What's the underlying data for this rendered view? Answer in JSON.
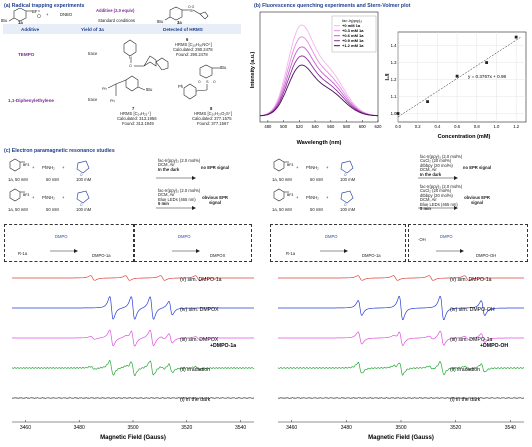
{
  "panel_a": {
    "title": "(a) Radical trapping experiments",
    "scheme_plus": "+",
    "scheme_reagent": "DNBO",
    "scheme_additive": "Additive (2.0 equiv)",
    "scheme_conditions": "Standard conditions",
    "label_1a": "1a",
    "label_3a": "3a",
    "table_headers": [
      "Additive",
      "Yield of 3a",
      "Detected of HRMS"
    ],
    "rows": [
      {
        "additive": "TEMPO",
        "yield": "trace",
        "compound_number": "6",
        "hrms": "HRMS [C₁₈H₃₀NO⁺]",
        "calc": "Calculated: 290.2478",
        "found": "Found: 290.2478"
      },
      {
        "additive": "1,1-Diphenylethylene",
        "yield": "trace",
        "compound_number": "7",
        "hrms": "HRMS [C₂₄H₂₅⁺]",
        "calc": "Calculated: 313.1956",
        "found": "Found: 313.1949",
        "compound_number_2": "8",
        "hrms_2": "HRMS [C₂₀H₂₇O₂S⁺]",
        "calc_2": "Calculated: 377.1575",
        "found_2": "Found: 377.1567"
      }
    ],
    "substituent_tbu": "tBu",
    "substituent_ph": "Ph"
  },
  "panel_b": {
    "title": "(b) Fluorescence quenching experiments and Stern-Volmer plot"
  },
  "panel_c": {
    "title": "(c) Electron paramagnetic resonance studies",
    "left_rows": [
      {
        "conditions": [
          "fac-Ir(ppy)₃ (2.0 mol%)",
          "DCM, Air",
          "In the dark"
        ],
        "result": "no EPR signal"
      },
      {
        "conditions": [
          "fac-Ir(ppy)₃ (2.0 mol%)",
          "DCM, Air",
          "Blue LEDs (465 nm)",
          "5 min"
        ],
        "result": "obvious EPR signal"
      }
    ],
    "right_rows": [
      {
        "conditions": [
          "fac-Ir(ppy)₃ (2.0 mol%)",
          "CuCl₂ (20 mol%)",
          "dtbbpy (20 mol%)",
          "DCM, Air",
          "In the dark"
        ],
        "result": "no EPR signal"
      },
      {
        "conditions": [
          "fac-Ir(ppy)₃ (2.0 mol%)",
          "CuCl₂ (20 mol%)",
          "dtbbpy (20 mol%)",
          "DCM, Air",
          "Blue LEDs (465 nm)",
          "5 min"
        ],
        "result": "obvious EPR signal"
      }
    ],
    "reagent_amounts": [
      "1a, 50 mM",
      "50 mM",
      "100 mM"
    ],
    "reagent_phnh": "PhNH₂",
    "dmpo_label": "DMPO",
    "plus": "+",
    "left_box": {
      "r1": "R-1a",
      "adduct1": "DMPO-1a",
      "adduct2": "DMPOX",
      "arrow": "DMPO",
      "dmpox_arrow": "DMPO"
    },
    "right_box": {
      "r1": "R-1a",
      "adduct1": "DMPO-1a",
      "oh": "·OH",
      "adduct2": "DMPO-OH",
      "arrow": "DMPO",
      "oh_arrow": "DMPO"
    }
  },
  "chart_data": [
    {
      "type": "line",
      "title": "",
      "xlabel": "Wavelength (nm)",
      "ylabel": "Intensity (a.u.)",
      "xlim": [
        470,
        620
      ],
      "x_ticks": [
        480,
        500,
        520,
        540,
        560,
        580,
        600,
        620
      ],
      "legend_title": "fac-Ir(ppy)₃",
      "legend_position": "top-right",
      "peak_x": 520,
      "series": [
        {
          "name": "+0 mM 1a",
          "color": "#f3b6ea",
          "peak": 1.0
        },
        {
          "name": "+0.3 mM 1a",
          "color": "#e58be0",
          "peak": 0.87
        },
        {
          "name": "+0.6 mM 1a",
          "color": "#c95bd3",
          "peak": 0.76
        },
        {
          "name": "+0.9 mM 1a",
          "color": "#8a2f9e",
          "peak": 0.66
        },
        {
          "name": "+1.2 mM 1a",
          "color": "#4a0d57",
          "peak": 0.56
        }
      ]
    },
    {
      "type": "scatter",
      "title": "",
      "xlabel": "Concentration (mM)",
      "ylabel": "I₀/I",
      "xlim": [
        0,
        1.3
      ],
      "ylim": [
        0.95,
        1.48
      ],
      "x_ticks": [
        0.0,
        0.2,
        0.4,
        0.6,
        0.8,
        1.0,
        1.2
      ],
      "y_ticks": [
        1.0,
        1.1,
        1.2,
        1.3,
        1.4
      ],
      "x": [
        0.0,
        0.3,
        0.6,
        0.9,
        1.2
      ],
      "y": [
        1.0,
        1.07,
        1.22,
        1.3,
        1.45
      ],
      "fit_label": "y = 0.3767x + 0.98",
      "fit": {
        "slope": 0.3767,
        "intercept": 0.98
      }
    },
    {
      "type": "line",
      "title": "",
      "xlabel": "Magnetic Field (Gauss)",
      "ylabel": "",
      "xlim": [
        3455,
        3545
      ],
      "x_ticks": [
        3460,
        3480,
        3500,
        3520,
        3540
      ],
      "series": [
        {
          "name": "(v) sim. DMPO-1a",
          "color": "#e0443c",
          "style": "dmpo_r"
        },
        {
          "name": "(iv) sim. DMPOX",
          "color": "#2a3fd6",
          "style": "dmpox"
        },
        {
          "name": "(iii) sim. DMPOX +DMPO-1a",
          "color": "#e052e0",
          "style": "mix"
        },
        {
          "name": "(ii) irradiation",
          "color": "#2aa83a",
          "style": "exp"
        },
        {
          "name": "(i) in the dark",
          "color": "#333333",
          "style": "flat"
        }
      ]
    },
    {
      "type": "line",
      "title": "",
      "xlabel": "Magnetic Field (Gauss)",
      "ylabel": "",
      "xlim": [
        3455,
        3545
      ],
      "x_ticks": [
        3460,
        3480,
        3500,
        3520,
        3540
      ],
      "series": [
        {
          "name": "(v) sim. DMPO-1a",
          "color": "#e0443c",
          "style": "dmpo_r"
        },
        {
          "name": "(iv) sim. DMPO-OH",
          "color": "#2a3fd6",
          "style": "dmpooh"
        },
        {
          "name": "(iii) sim. DMPO-1a +DMPO-OH",
          "color": "#e052e0",
          "style": "mix2"
        },
        {
          "name": "(ii) irradiation",
          "color": "#2aa83a",
          "style": "exp2"
        },
        {
          "name": "(i) in the dark",
          "color": "#333333",
          "style": "flat"
        }
      ]
    }
  ]
}
